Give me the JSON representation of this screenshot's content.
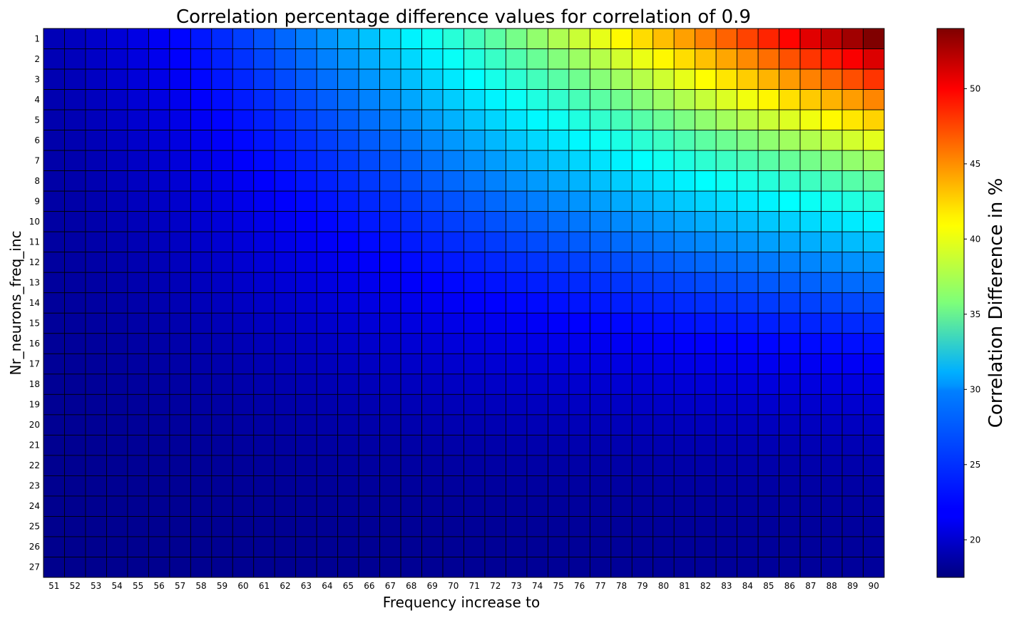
{
  "chart_data": {
    "type": "heatmap",
    "title": "Correlation percentage difference values for correlation of 0.9",
    "xlabel": "Frequency increase to",
    "ylabel": "Nr_neurons_freq_inc",
    "colorbar_label": "Correlation Difference in %",
    "x_categories": [
      "51",
      "52",
      "53",
      "54",
      "55",
      "56",
      "57",
      "58",
      "59",
      "60",
      "61",
      "62",
      "63",
      "64",
      "65",
      "66",
      "67",
      "68",
      "69",
      "70",
      "71",
      "72",
      "73",
      "74",
      "75",
      "76",
      "77",
      "78",
      "79",
      "80",
      "81",
      "82",
      "83",
      "84",
      "85",
      "86",
      "87",
      "88",
      "89",
      "90"
    ],
    "y_categories": [
      "1",
      "2",
      "3",
      "4",
      "5",
      "6",
      "7",
      "8",
      "9",
      "10",
      "11",
      "12",
      "13",
      "14",
      "15",
      "16",
      "17",
      "18",
      "19",
      "20",
      "21",
      "22",
      "23",
      "24",
      "25",
      "26",
      "27"
    ],
    "colorbar_range": [
      17.5,
      54
    ],
    "colorbar_ticks": [
      20,
      25,
      30,
      35,
      40,
      45,
      50
    ],
    "colormap": "jet",
    "values_approx": {
      "row_1_first_to_last": [
        19.5,
        54
      ],
      "row_27_first_to_last": [
        18,
        18.5
      ],
      "col_51_top_to_bottom": [
        19.5,
        18
      ]
    },
    "grid": true
  }
}
